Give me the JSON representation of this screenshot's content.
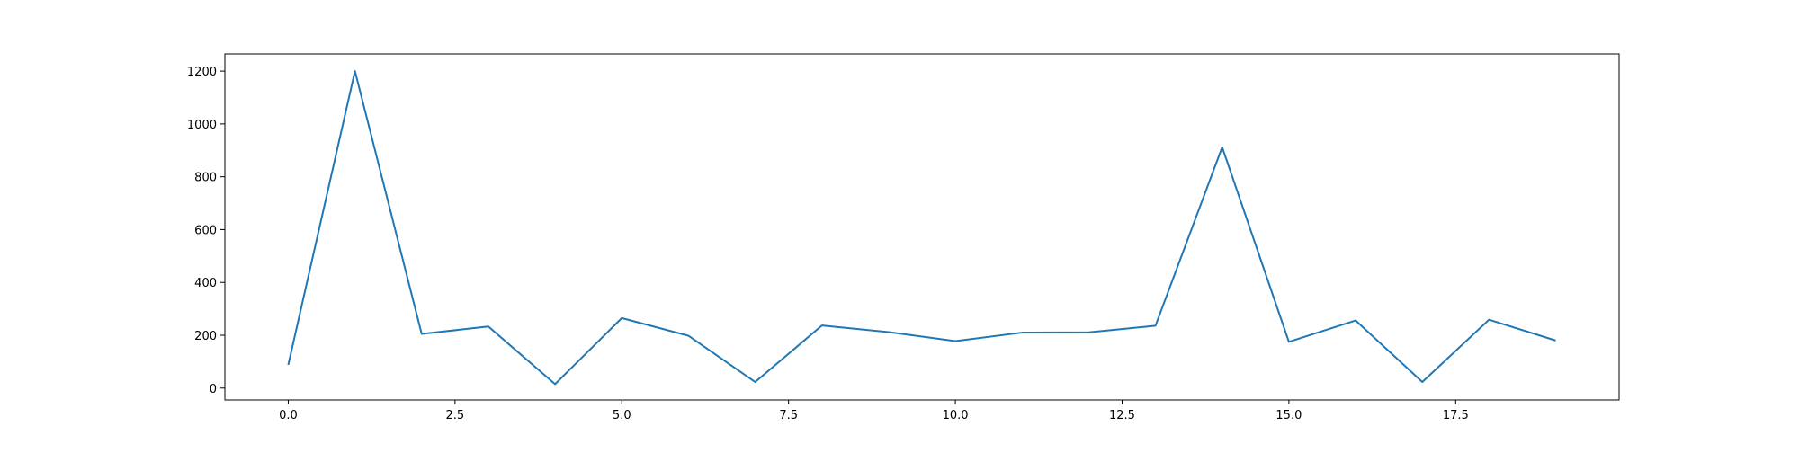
{
  "chart_data": {
    "type": "line",
    "title": "",
    "xlabel": "",
    "ylabel": "",
    "xlim": [
      -0.95,
      19.95
    ],
    "ylim": [
      -45,
      1265
    ],
    "grid": false,
    "x_ticks": [
      0.0,
      2.5,
      5.0,
      7.5,
      10.0,
      12.5,
      15.0,
      17.5
    ],
    "x_tick_labels": [
      "0.0",
      "2.5",
      "5.0",
      "7.5",
      "10.0",
      "12.5",
      "15.0",
      "17.5"
    ],
    "y_ticks": [
      0,
      200,
      400,
      600,
      800,
      1000,
      1200
    ],
    "y_tick_labels": [
      "0",
      "200",
      "400",
      "600",
      "800",
      "1000",
      "1200"
    ],
    "series": [
      {
        "color": "#1f77b4",
        "x": [
          0,
          1,
          2,
          3,
          4,
          5,
          6,
          7,
          8,
          9,
          10,
          11,
          12,
          13,
          14,
          15,
          16,
          17,
          18,
          19
        ],
        "values": [
          88,
          1200,
          205,
          233,
          15,
          265,
          198,
          23,
          237,
          212,
          178,
          210,
          211,
          236,
          912,
          175,
          256,
          23,
          259,
          180
        ]
      }
    ]
  }
}
